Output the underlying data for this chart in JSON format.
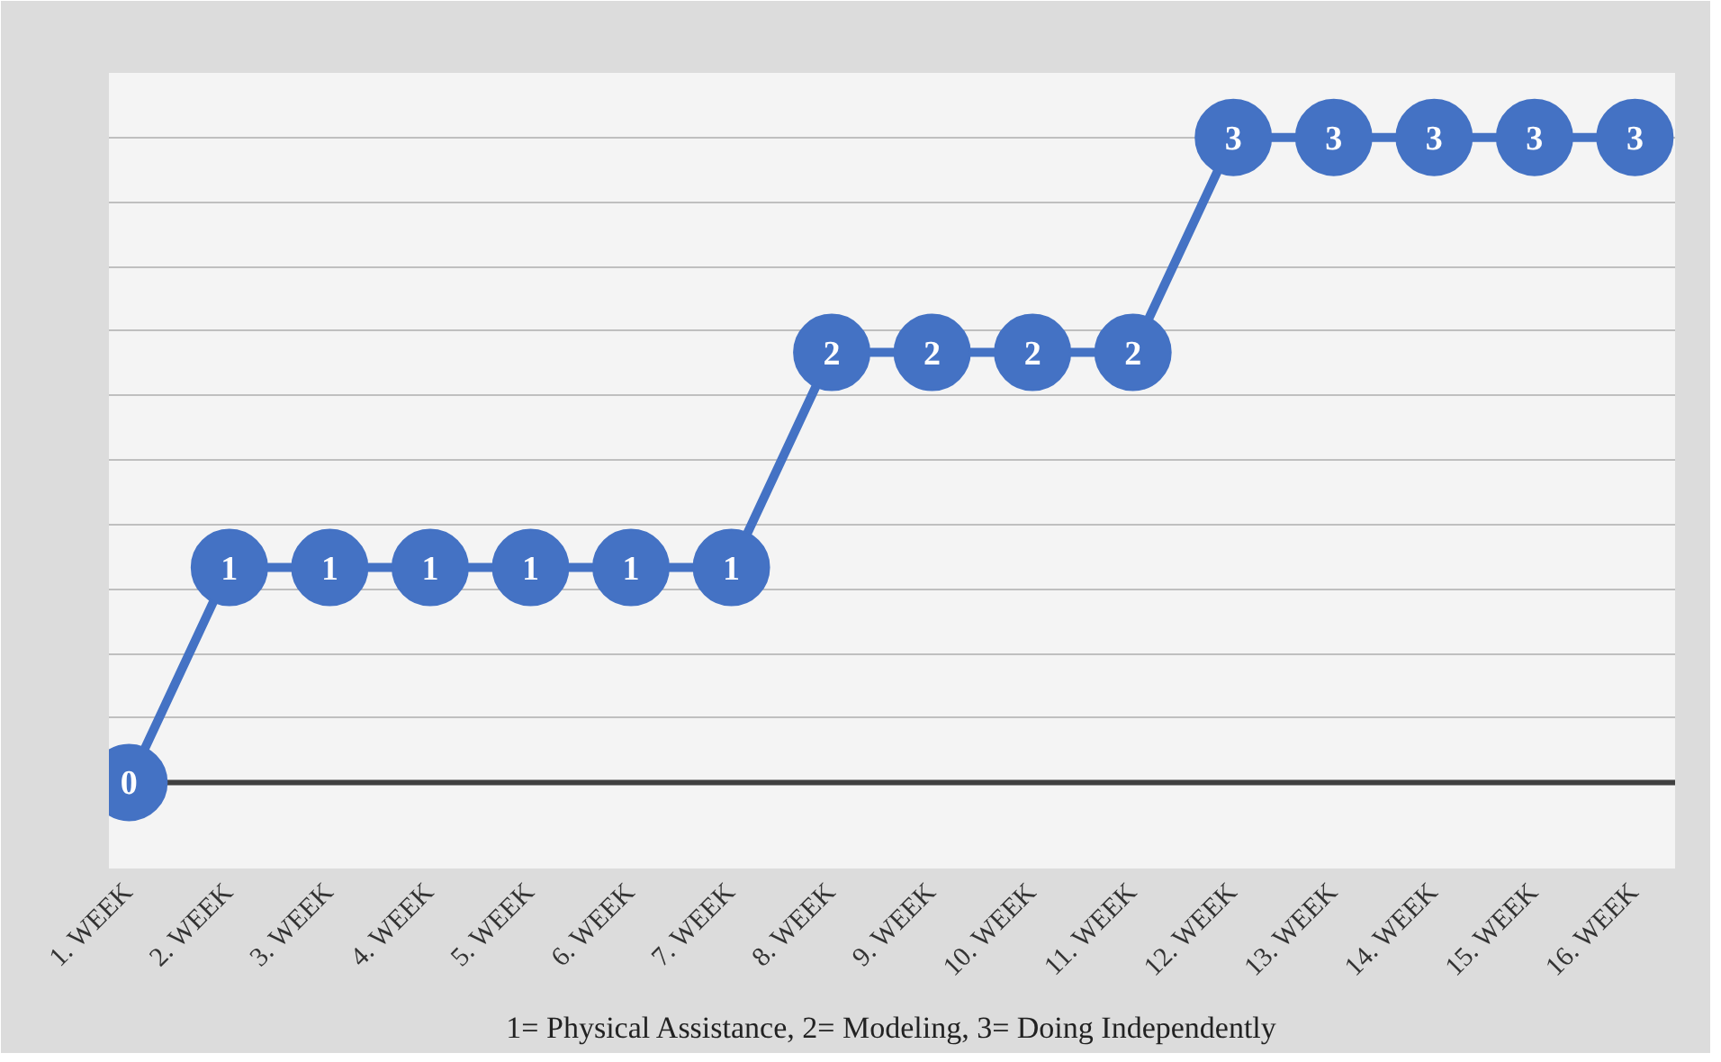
{
  "chart_data": {
    "type": "line",
    "categories": [
      "1. WEEK",
      "2. WEEK",
      "3. WEEK",
      "4. WEEK",
      "5. WEEK",
      "6. WEEK",
      "7. WEEK",
      "8. WEEK",
      "9. WEEK",
      "10. WEEK",
      "11. WEEK",
      "12. WEEK",
      "13. WEEK",
      "14. WEEK",
      "15. WEEK",
      "16. WEEK"
    ],
    "series": [
      {
        "color": "#4472c4",
        "values": [
          0,
          1,
          1,
          1,
          1,
          1,
          1,
          2,
          2,
          2,
          2,
          3,
          3,
          3,
          3,
          3
        ]
      }
    ],
    "ylim": [
      -0.4,
      3.3
    ],
    "yticks": [
      {
        "value": 0,
        "label": null
      },
      {
        "value": 0.3,
        "label": null
      },
      {
        "value": 0.6,
        "label": null
      },
      {
        "value": 0.9,
        "label": null
      },
      {
        "value": 1.2,
        "label": null
      },
      {
        "value": 1.5,
        "label": null
      },
      {
        "value": 1.8,
        "label": null
      },
      {
        "value": 2.1,
        "label": null
      },
      {
        "value": 2.4,
        "label": null
      },
      {
        "value": 2.7,
        "label": null
      },
      {
        "value": 3.0,
        "label": null
      },
      {
        "value": 3.3,
        "label": null
      }
    ],
    "tick_labels": "x",
    "grid": "y",
    "marker": "circle",
    "line_style": "solid",
    "data_labels": true,
    "annotations": [
      "1= Physical Assistance, 2= Modeling, 3= Doing Independently"
    ]
  }
}
